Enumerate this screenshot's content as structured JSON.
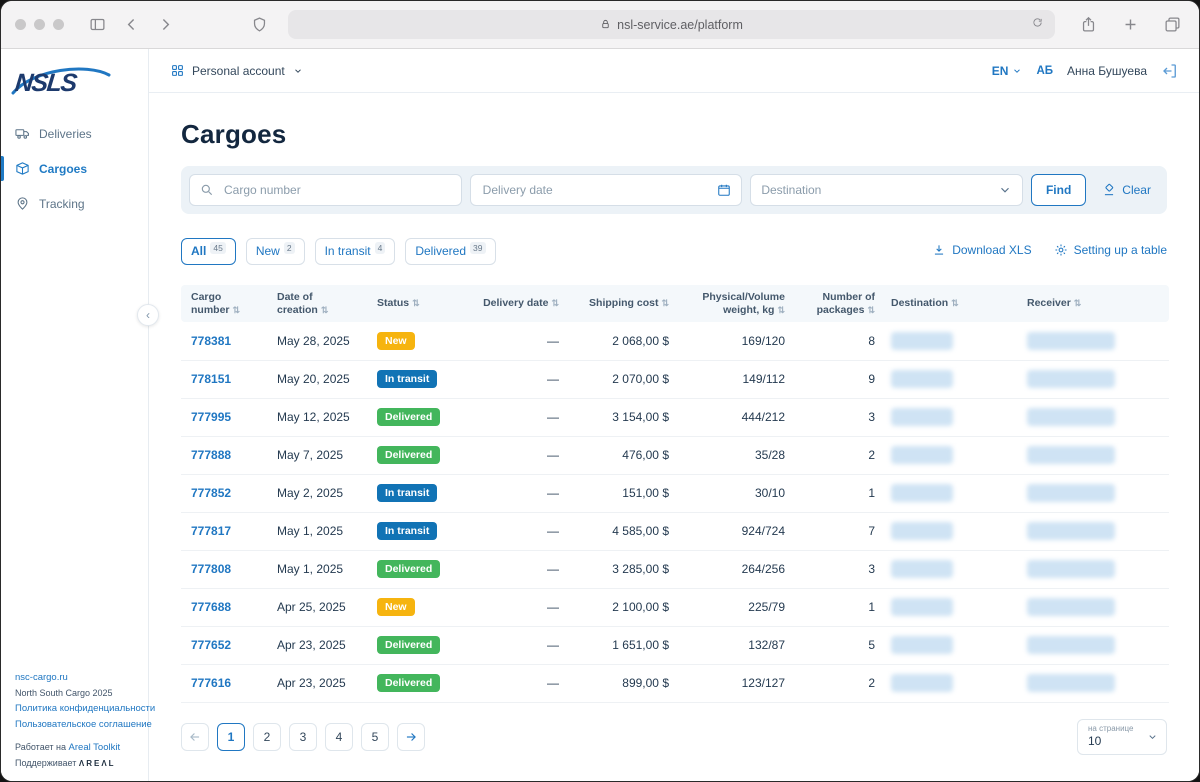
{
  "accent": "#2077c2",
  "browser": {
    "url": "nsl-service.ae/platform"
  },
  "topbar": {
    "account_label": "Personal account",
    "language": "EN",
    "user_initials": "АБ",
    "user_name": "Анна Бушуева"
  },
  "sidebar": {
    "logo_text": "NSLS",
    "items": [
      {
        "label": "Deliveries",
        "icon": "truck-icon",
        "active": false
      },
      {
        "label": "Cargoes",
        "icon": "box-icon",
        "active": true
      },
      {
        "label": "Tracking",
        "icon": "pin-icon",
        "active": false
      }
    ],
    "footer": {
      "site_link": "nsc-cargo.ru",
      "copyright": "North South Cargo 2025",
      "privacy_link": "Политика конфиденциальности",
      "terms_link": "Пользовательское соглашение",
      "powered_prefix": "Работает на",
      "powered_link": "Areal Toolkit",
      "supported_prefix": "Поддерживает",
      "supported_brand": "ΛREΛL"
    }
  },
  "page": {
    "title": "Cargoes"
  },
  "filters": {
    "cargo_number_placeholder": "Cargo number",
    "delivery_date_placeholder": "Delivery date",
    "destination_placeholder": "Destination",
    "find_label": "Find",
    "clear_label": "Clear"
  },
  "tabs": [
    {
      "label": "All",
      "count": "45",
      "active": true
    },
    {
      "label": "New",
      "count": "2",
      "active": false
    },
    {
      "label": "In transit",
      "count": "4",
      "active": false
    },
    {
      "label": "Delivered",
      "count": "39",
      "active": false
    }
  ],
  "table_actions": {
    "download_label": "Download XLS",
    "settings_label": "Setting up a table"
  },
  "table": {
    "columns": [
      {
        "label": "Cargo number",
        "align": "left"
      },
      {
        "label": "Date of creation",
        "align": "left"
      },
      {
        "label": "Status",
        "align": "left"
      },
      {
        "label": "Delivery date",
        "align": "right"
      },
      {
        "label": "Shipping cost",
        "align": "right"
      },
      {
        "label": "Physical/Volume weight, kg",
        "align": "right"
      },
      {
        "label": "Number of packages",
        "align": "right"
      },
      {
        "label": "Destination",
        "align": "left"
      },
      {
        "label": "Receiver",
        "align": "left"
      }
    ],
    "status_colors": {
      "New": "#f6b40f",
      "In transit": "#1173b5",
      "Delivered": "#43b65c"
    },
    "rows": [
      {
        "cargo_number": "778381",
        "date_of_creation": "May 28, 2025",
        "status": "New",
        "delivery_date": "—",
        "shipping_cost": "2 068,00 $",
        "weight": "169/120",
        "packages": "8",
        "destination": "",
        "receiver": ""
      },
      {
        "cargo_number": "778151",
        "date_of_creation": "May 20, 2025",
        "status": "In transit",
        "delivery_date": "—",
        "shipping_cost": "2 070,00 $",
        "weight": "149/112",
        "packages": "9",
        "destination": "",
        "receiver": ""
      },
      {
        "cargo_number": "777995",
        "date_of_creation": "May 12, 2025",
        "status": "Delivered",
        "delivery_date": "—",
        "shipping_cost": "3 154,00 $",
        "weight": "444/212",
        "packages": "3",
        "destination": "",
        "receiver": ""
      },
      {
        "cargo_number": "777888",
        "date_of_creation": "May 7, 2025",
        "status": "Delivered",
        "delivery_date": "—",
        "shipping_cost": "476,00 $",
        "weight": "35/28",
        "packages": "2",
        "destination": "",
        "receiver": ""
      },
      {
        "cargo_number": "777852",
        "date_of_creation": "May 2, 2025",
        "status": "In transit",
        "delivery_date": "—",
        "shipping_cost": "151,00 $",
        "weight": "30/10",
        "packages": "1",
        "destination": "",
        "receiver": ""
      },
      {
        "cargo_number": "777817",
        "date_of_creation": "May 1, 2025",
        "status": "In transit",
        "delivery_date": "—",
        "shipping_cost": "4 585,00 $",
        "weight": "924/724",
        "packages": "7",
        "destination": "",
        "receiver": ""
      },
      {
        "cargo_number": "777808",
        "date_of_creation": "May 1, 2025",
        "status": "Delivered",
        "delivery_date": "—",
        "shipping_cost": "3 285,00 $",
        "weight": "264/256",
        "packages": "3",
        "destination": "",
        "receiver": ""
      },
      {
        "cargo_number": "777688",
        "date_of_creation": "Apr 25, 2025",
        "status": "New",
        "delivery_date": "—",
        "shipping_cost": "2 100,00 $",
        "weight": "225/79",
        "packages": "1",
        "destination": "",
        "receiver": ""
      },
      {
        "cargo_number": "777652",
        "date_of_creation": "Apr 23, 2025",
        "status": "Delivered",
        "delivery_date": "—",
        "shipping_cost": "1 651,00 $",
        "weight": "132/87",
        "packages": "5",
        "destination": "",
        "receiver": ""
      },
      {
        "cargo_number": "777616",
        "date_of_creation": "Apr 23, 2025",
        "status": "Delivered",
        "delivery_date": "—",
        "shipping_cost": "899,00 $",
        "weight": "123/127",
        "packages": "2",
        "destination": "",
        "receiver": ""
      }
    ]
  },
  "pagination": {
    "pages": [
      "1",
      "2",
      "3",
      "4",
      "5"
    ],
    "active_page": "1",
    "per_page_label": "на странице",
    "per_page_value": "10"
  }
}
